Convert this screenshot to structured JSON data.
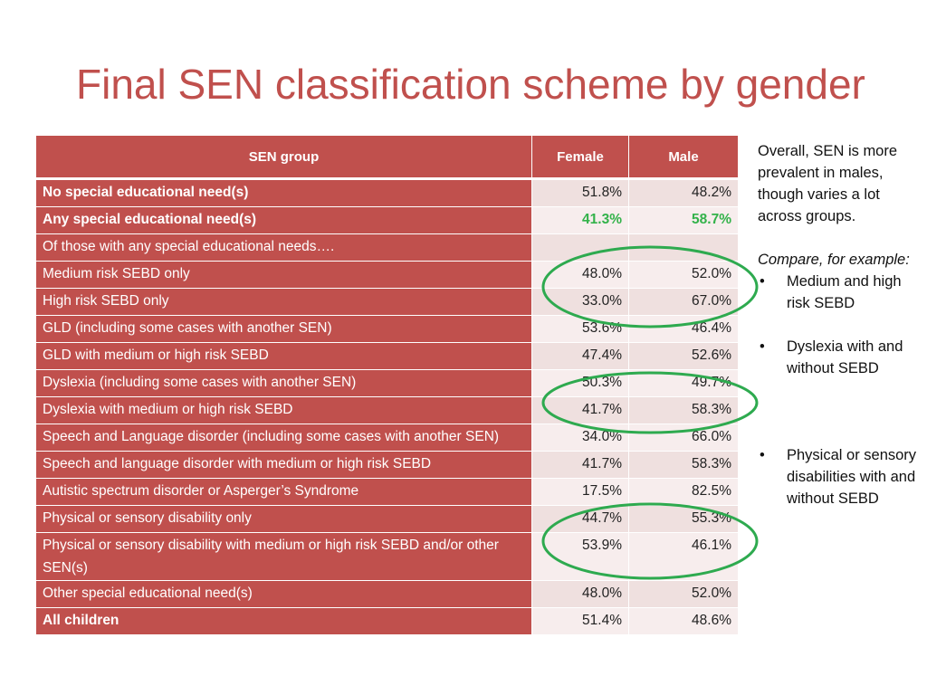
{
  "title": "Final SEN classification scheme by gender",
  "table": {
    "headers": [
      "SEN group",
      "Female",
      "Male"
    ],
    "rows": [
      {
        "group": "No special educational need(s)",
        "female": "51.8%",
        "male": "48.2%",
        "bold": true
      },
      {
        "group": "Any special educational need(s)",
        "female": "41.3%",
        "male": "58.7%",
        "bold": true,
        "highlight": "#33b24a"
      },
      {
        "group": "Of those with any special educational needs….",
        "female": "",
        "male": ""
      },
      {
        "group": "Medium risk SEBD only",
        "female": "48.0%",
        "male": "52.0%"
      },
      {
        "group": "High risk SEBD only",
        "female": "33.0%",
        "male": "67.0%"
      },
      {
        "group": "GLD (including some cases with another SEN)",
        "female": "53.6%",
        "male": "46.4%"
      },
      {
        "group": "GLD with medium or high risk SEBD",
        "female": "47.4%",
        "male": "52.6%"
      },
      {
        "group": "Dyslexia (including some cases with another SEN)",
        "female": "50.3%",
        "male": "49.7%"
      },
      {
        "group": "Dyslexia with medium or high risk SEBD",
        "female": "41.7%",
        "male": "58.3%"
      },
      {
        "group": "Speech and Language disorder (including some cases with another SEN)",
        "female": "34.0%",
        "male": "66.0%"
      },
      {
        "group": "Speech and language disorder with medium or high risk SEBD",
        "female": "41.7%",
        "male": "58.3%"
      },
      {
        "group": "Autistic spectrum disorder or Asperger’s Syndrome",
        "female": "17.5%",
        "male": "82.5%"
      },
      {
        "group": "Physical or sensory disability only",
        "female": "44.7%",
        "male": "55.3%"
      },
      {
        "group": "Physical or sensory disability with medium or high risk SEBD and/or other SEN(s)",
        "female": "53.9%",
        "male": "46.1%"
      },
      {
        "group": "Other special educational need(s)",
        "female": "48.0%",
        "male": "52.0%"
      },
      {
        "group": "All children",
        "female": "51.4%",
        "male": "48.6%",
        "bold": true
      }
    ]
  },
  "sidebar": {
    "intro": "Overall, SEN is more prevalent in males, though varies a lot across groups.",
    "compare": "Compare, for example:",
    "bullet_glyph": "•",
    "bullets": [
      "Medium and high risk SEBD",
      "Dyslexia with and without SEBD",
      "Physical or sensory disabilities with and without SEBD"
    ]
  },
  "colors": {
    "accent": "#c0504d",
    "cell_light": "#efe0df",
    "highlight_green": "#33b24a",
    "oval_green": "#2eaa4f"
  }
}
